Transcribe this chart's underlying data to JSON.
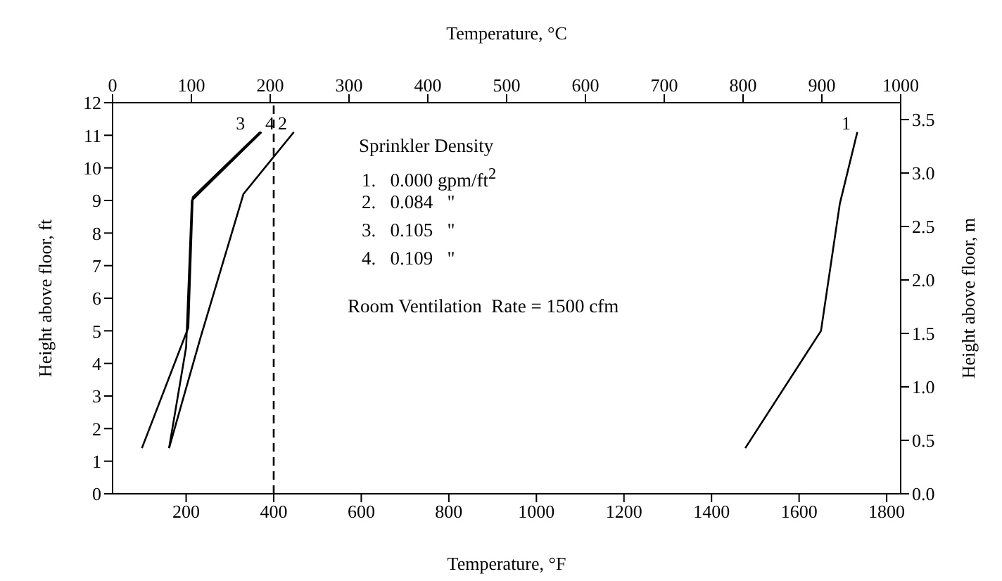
{
  "chart_data": {
    "type": "line",
    "title": "Temperature, °C",
    "xlabel": "Temperature, °F",
    "ylabel": "Height above floor, ft",
    "y2label": "Height above floor, m",
    "xlim": [
      32,
      1832
    ],
    "xticks": [
      200,
      400,
      600,
      800,
      1000,
      1200,
      1400,
      1600,
      1800
    ],
    "x2lim": [
      0,
      1000
    ],
    "x2ticks": [
      0,
      100,
      200,
      300,
      400,
      500,
      600,
      700,
      800,
      900,
      1000
    ],
    "ylim": [
      0,
      12
    ],
    "yticks": [
      0,
      1,
      2,
      3,
      4,
      5,
      6,
      7,
      8,
      9,
      10,
      11,
      12
    ],
    "y2lim": [
      0,
      3.6576
    ],
    "y2ticks": [
      {
        "value": 0,
        "label": "0.0"
      },
      {
        "value": 0.5,
        "label": "0.5"
      },
      {
        "value": 1,
        "label": "1.0"
      },
      {
        "value": 1.5,
        "label": "1.5"
      },
      {
        "value": 2,
        "label": "2.0"
      },
      {
        "value": 2.5,
        "label": "2.5"
      },
      {
        "value": 3,
        "label": "3.0"
      },
      {
        "value": 3.5,
        "label": "3.5"
      }
    ],
    "grid": false,
    "legend": false,
    "marker": "none",
    "series": [
      {
        "name": "1",
        "color": "#000000",
        "x": [
          1477,
          1650,
          1693,
          1733
        ],
        "values": [
          1.4,
          5,
          8.9,
          11.1
        ]
      },
      {
        "name": "2",
        "color": "#000000",
        "x": [
          161,
          233,
          331,
          446
        ],
        "values": [
          1.4,
          4.8,
          9.2,
          11.1
        ]
      },
      {
        "name": "3",
        "color": "#000000",
        "x": [
          99,
          205,
          215,
          369
        ],
        "values": [
          1.4,
          5.1,
          9.1,
          11.1
        ]
      },
      {
        "name": "4",
        "color": "#000000",
        "x": [
          161,
          200,
          213,
          372
        ],
        "values": [
          1.4,
          4.5,
          9,
          11.1
        ]
      }
    ],
    "ref_lines": [
      {
        "axis": "x",
        "value": 400,
        "color": "#000000",
        "line_style": "dashed"
      }
    ],
    "annotations": [
      "Sprinkler Density",
      "1.   0.000 gpm/ft$^{2}$",
      "2.   0.084   \"",
      "3.   0.105   \"",
      "4.   0.109   \"",
      "Room Ventilation  Rate = 1500 cfm"
    ]
  }
}
